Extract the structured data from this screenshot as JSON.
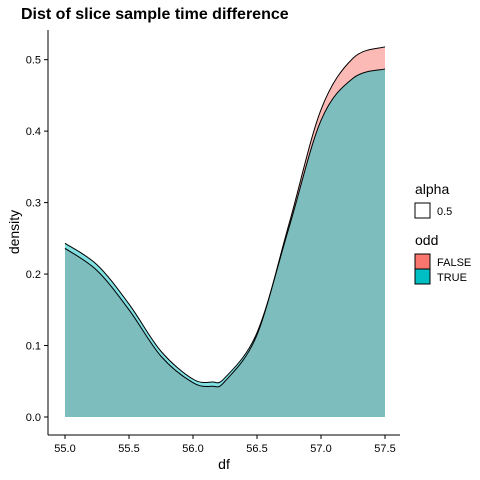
{
  "chart_data": {
    "type": "area",
    "title": "Dist of slice sample time difference",
    "xlabel": "df",
    "ylabel": "density",
    "xlim": [
      55.0,
      57.5
    ],
    "ylim": [
      0.0,
      0.52
    ],
    "x_ticks": [
      "55.0",
      "55.5",
      "56.0",
      "56.5",
      "57.0",
      "57.5"
    ],
    "y_ticks": [
      "0.0",
      "0.1",
      "0.2",
      "0.3",
      "0.4",
      "0.5"
    ],
    "grid": false,
    "legend_position": "right",
    "legend": [
      {
        "title": "alpha",
        "entries": [
          {
            "label": "0.5",
            "color": "#ffffff"
          }
        ]
      },
      {
        "title": "odd",
        "entries": [
          {
            "label": "FALSE",
            "color": "#F8766D"
          },
          {
            "label": "TRUE",
            "color": "#00BFC4"
          }
        ]
      }
    ],
    "x": [
      55.0,
      55.25,
      55.5,
      55.75,
      56.0,
      56.15,
      56.25,
      56.5,
      56.75,
      57.0,
      57.25,
      57.5
    ],
    "series": [
      {
        "name": "FALSE",
        "color": "#F8766D",
        "values": [
          0.236,
          0.205,
          0.15,
          0.085,
          0.048,
          0.043,
          0.05,
          0.115,
          0.27,
          0.43,
          0.502,
          0.518
        ]
      },
      {
        "name": "TRUE",
        "color": "#00BFC4",
        "values": [
          0.243,
          0.213,
          0.158,
          0.092,
          0.053,
          0.049,
          0.055,
          0.118,
          0.265,
          0.415,
          0.474,
          0.487
        ]
      }
    ]
  }
}
